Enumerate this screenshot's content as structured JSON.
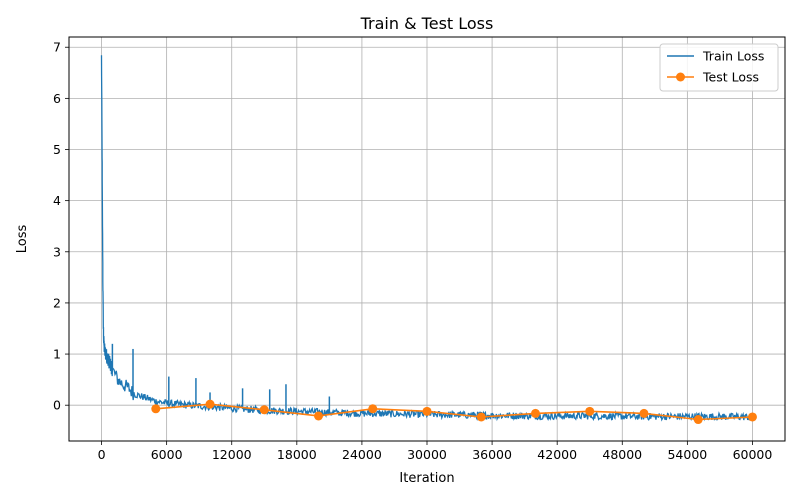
{
  "chart_data": {
    "type": "line",
    "title": "Train & Test Loss",
    "xlabel": "Iteration",
    "ylabel": "Loss",
    "xlim": [
      -3000,
      63000
    ],
    "ylim": [
      -0.7,
      7.2
    ],
    "xticks": [
      0,
      6000,
      12000,
      18000,
      24000,
      30000,
      36000,
      42000,
      48000,
      54000,
      60000
    ],
    "yticks": [
      0,
      1,
      2,
      3,
      4,
      5,
      6,
      7
    ],
    "grid": true,
    "legend_position": "top-right",
    "series": [
      {
        "name": "Train Loss",
        "color": "#1f77b4",
        "marker": "none",
        "x": [
          0,
          40,
          80,
          120,
          160,
          200,
          300,
          400,
          600,
          800,
          1000,
          1500,
          2000,
          2500,
          3000,
          4000,
          5000,
          6000,
          8000,
          10000,
          12000,
          15000,
          18000,
          21000,
          24000,
          27000,
          30000,
          33000,
          36000,
          40000,
          45000,
          50000,
          55000,
          60000
        ],
        "y": [
          6.8,
          5.2,
          3.8,
          2.5,
          1.6,
          1.25,
          1.05,
          1.0,
          0.9,
          0.8,
          0.7,
          0.5,
          0.4,
          0.33,
          0.22,
          0.15,
          0.08,
          0.04,
          0.0,
          -0.03,
          -0.06,
          -0.1,
          -0.12,
          -0.14,
          -0.16,
          -0.17,
          -0.18,
          -0.19,
          -0.2,
          -0.21,
          -0.21,
          -0.22,
          -0.22,
          -0.23
        ],
        "spikes": [
          {
            "x": 0,
            "y": 6.8
          },
          {
            "x": 1000,
            "y": 1.2
          },
          {
            "x": 2900,
            "y": 1.1
          },
          {
            "x": 6200,
            "y": 0.56
          },
          {
            "x": 8700,
            "y": 0.53
          },
          {
            "x": 10000,
            "y": 0.25
          },
          {
            "x": 13000,
            "y": 0.33
          },
          {
            "x": 15500,
            "y": 0.31
          },
          {
            "x": 17000,
            "y": 0.41
          },
          {
            "x": 21000,
            "y": 0.17
          }
        ]
      },
      {
        "name": "Test Loss",
        "color": "#ff7f0e",
        "marker": "circle",
        "x": [
          5000,
          10000,
          15000,
          20000,
          25000,
          30000,
          35000,
          40000,
          45000,
          50000,
          55000,
          60000
        ],
        "y": [
          -0.07,
          0.02,
          -0.09,
          -0.21,
          -0.07,
          -0.12,
          -0.23,
          -0.16,
          -0.12,
          -0.16,
          -0.28,
          -0.23
        ]
      }
    ]
  }
}
